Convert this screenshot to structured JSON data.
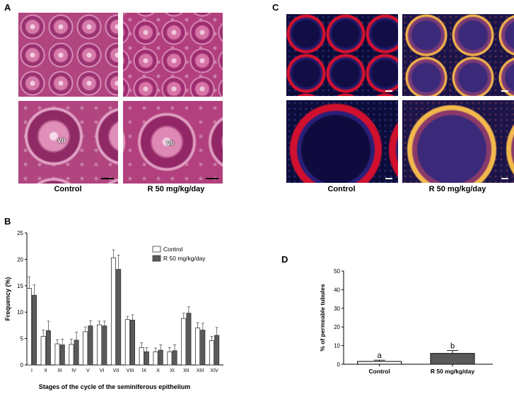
{
  "panels": {
    "a": {
      "letter": "A",
      "captions": [
        "Control",
        "R 50 mg/kg/day"
      ],
      "stage_labels": [
        "VII",
        "VII"
      ]
    },
    "b": {
      "letter": "B"
    },
    "c": {
      "letter": "C",
      "captions": [
        "Control",
        "R 50 mg/kg/day"
      ]
    },
    "d": {
      "letter": "D"
    }
  },
  "colors": {
    "control_bar": "#ffffff",
    "treated_bar": "#5a5a5a",
    "he_stain": "#b0457f",
    "fluor_red": "#d3122f",
    "fluor_blue": "#0c0c3a"
  },
  "chart_data": [
    {
      "type": "bar",
      "title": "",
      "xlabel": "Stages of the cycle of the seminiferous epithelium",
      "ylabel": "Frequency (%)",
      "ylim": [
        0,
        25
      ],
      "yticks": [
        0,
        5,
        10,
        15,
        20,
        25
      ],
      "grid": false,
      "legend": "top-right",
      "categories": [
        "I",
        "II",
        "III",
        "IV",
        "V",
        "VI",
        "VII",
        "VIII",
        "IX",
        "X",
        "XI",
        "XII",
        "XIII",
        "XIV"
      ],
      "series": [
        {
          "name": "Control",
          "color": "#ffffff",
          "values": [
            14.5,
            5.4,
            4.0,
            3.9,
            6.3,
            7.6,
            20.3,
            8.6,
            3.3,
            2.5,
            2.5,
            8.8,
            7.0,
            4.6
          ],
          "errors": [
            2.2,
            1.2,
            0.8,
            1.0,
            0.9,
            0.7,
            1.5,
            0.6,
            0.9,
            0.7,
            0.8,
            1.0,
            1.0,
            0.8
          ]
        },
        {
          "name": "R 50 mg/kg/day",
          "color": "#5a5a5a",
          "values": [
            13.2,
            6.5,
            3.8,
            4.7,
            7.4,
            7.4,
            18.1,
            8.5,
            2.5,
            2.8,
            2.7,
            9.8,
            6.6,
            5.6
          ],
          "errors": [
            2.0,
            1.8,
            1.1,
            1.5,
            1.0,
            0.9,
            2.7,
            1.0,
            0.8,
            1.0,
            1.1,
            1.2,
            1.3,
            1.5
          ]
        }
      ]
    },
    {
      "type": "bar",
      "title": "",
      "xlabel": "",
      "ylabel": "% of permeable tubules",
      "ylim": [
        0,
        50
      ],
      "yticks": [
        0,
        10,
        20,
        30,
        40,
        50
      ],
      "grid": false,
      "categories": [
        "Control",
        "R 50 mg/kg/day"
      ],
      "values": [
        1.5,
        5.8
      ],
      "errors": [
        0.7,
        1.6
      ],
      "colors": [
        "#ffffff",
        "#5a5a5a"
      ],
      "annotations": [
        "a",
        "b"
      ]
    }
  ]
}
